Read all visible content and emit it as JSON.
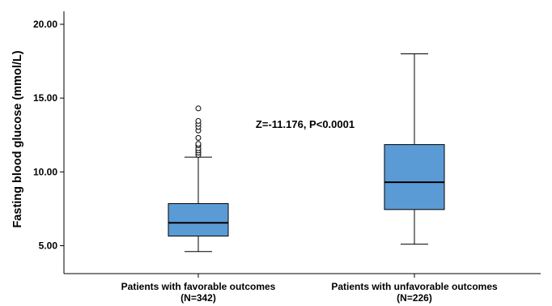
{
  "chart_data": {
    "type": "box",
    "title": "",
    "xlabel": "",
    "ylabel": "Fasting blood glucose (mmol/L)",
    "ylim": [
      3.6,
      21.0
    ],
    "yticks": [
      5.0,
      10.0,
      15.0,
      20.0
    ],
    "ytick_labels": [
      "5.00",
      "10.00",
      "15.00",
      "20.00"
    ],
    "categories": [
      {
        "line1": "Patients with favorable outcomes",
        "line2": "(N=342)"
      },
      {
        "line1": "Patients with unfavorable outcomes",
        "line2": "(N=226)"
      }
    ],
    "boxes": [
      {
        "whisker_low": 4.6,
        "q1": 5.65,
        "median": 6.55,
        "q3": 7.85,
        "whisker_high": 11.0,
        "outliers": [
          11.15,
          11.3,
          11.45,
          11.6,
          11.8,
          11.9,
          12.3,
          12.8,
          13.05,
          13.25,
          13.45,
          14.3
        ]
      },
      {
        "whisker_low": 5.1,
        "q1": 7.45,
        "median": 9.3,
        "q3": 11.85,
        "whisker_high": 18.0,
        "outliers": []
      }
    ],
    "annotation": "Z=-11.176, P<0.0001",
    "box_color": "#5b9bd5",
    "grid": false
  }
}
